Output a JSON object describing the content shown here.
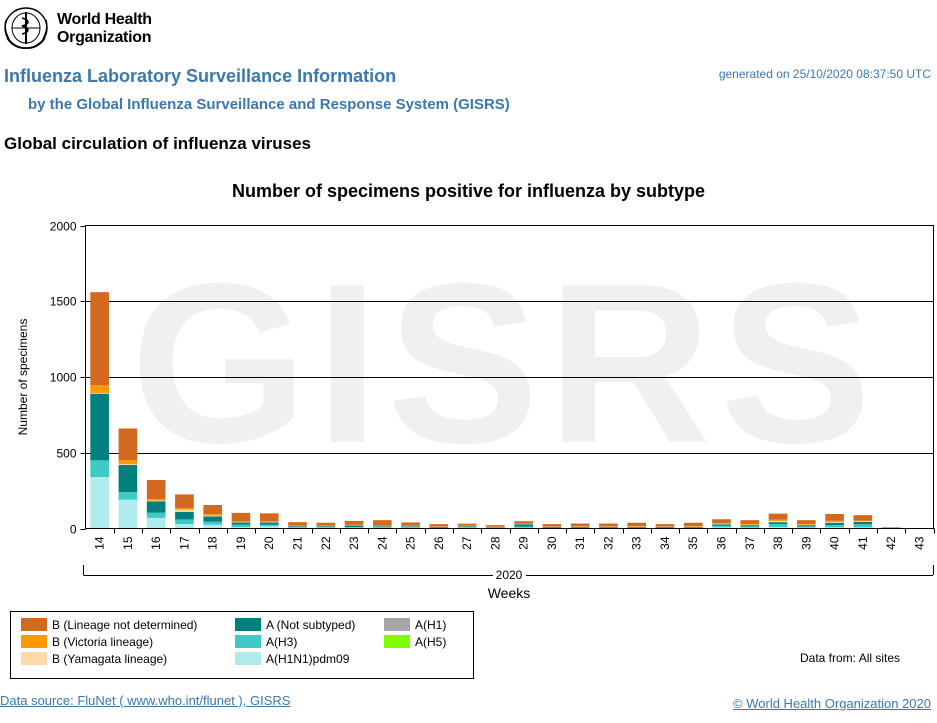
{
  "header": {
    "org_name_line1": "World Health",
    "org_name_line2": "Organization",
    "title": "Influenza Laboratory Surveillance Information",
    "subtitle": "by the Global Influenza Surveillance and Response System (GISRS)",
    "generated": "generated on 25/10/2020 08:37:50 UTC",
    "section_title": "Global circulation of influenza viruses"
  },
  "watermark": "GISRS",
  "chart_data": {
    "type": "bar",
    "stacked": true,
    "title": "Number of specimens positive for influenza by subtype",
    "ylabel": "Number of specimens",
    "xlabel": "Weeks",
    "year_label": "2020",
    "ylim": [
      0,
      2000
    ],
    "yticks": [
      0,
      500,
      1000,
      1500,
      2000
    ],
    "grid": true,
    "categories": [
      "14",
      "15",
      "16",
      "17",
      "18",
      "19",
      "20",
      "21",
      "22",
      "23",
      "24",
      "25",
      "26",
      "27",
      "28",
      "29",
      "30",
      "31",
      "32",
      "33",
      "34",
      "35",
      "36",
      "37",
      "38",
      "39",
      "40",
      "41",
      "42",
      "43"
    ],
    "series": [
      {
        "name": "A(H1N1)pdm09",
        "color": "#b0ebeb",
        "values": [
          340,
          190,
          70,
          30,
          25,
          10,
          15,
          5,
          5,
          5,
          5,
          5,
          3,
          5,
          3,
          5,
          3,
          3,
          3,
          3,
          3,
          3,
          8,
          6,
          10,
          6,
          8,
          8,
          0,
          0
        ]
      },
      {
        "name": "A(H3)",
        "color": "#3dc9c4",
        "values": [
          110,
          50,
          35,
          30,
          20,
          15,
          10,
          5,
          5,
          5,
          5,
          5,
          3,
          5,
          3,
          8,
          3,
          3,
          3,
          3,
          3,
          3,
          10,
          8,
          20,
          8,
          15,
          20,
          2,
          0
        ]
      },
      {
        "name": "A(Not subtyped)",
        "color": "#007f7f",
        "values": [
          440,
          180,
          75,
          50,
          35,
          15,
          15,
          5,
          5,
          10,
          5,
          5,
          5,
          5,
          3,
          15,
          5,
          5,
          5,
          5,
          5,
          5,
          10,
          8,
          12,
          8,
          15,
          15,
          3,
          1
        ]
      },
      {
        "name": "A(H1)",
        "color": "#a6a6a6",
        "values": [
          0,
          0,
          0,
          0,
          0,
          0,
          0,
          0,
          0,
          0,
          0,
          0,
          0,
          0,
          0,
          0,
          0,
          0,
          0,
          0,
          0,
          0,
          0,
          0,
          0,
          0,
          0,
          0,
          0,
          0
        ]
      },
      {
        "name": "A(H5)",
        "color": "#7fff00",
        "values": [
          0,
          0,
          0,
          0,
          0,
          0,
          0,
          0,
          0,
          0,
          0,
          0,
          0,
          0,
          0,
          0,
          0,
          0,
          0,
          0,
          0,
          0,
          0,
          0,
          0,
          0,
          0,
          0,
          0,
          0
        ]
      },
      {
        "name": "B (Yamagata lineage)",
        "color": "#fdd9a9",
        "values": [
          5,
          5,
          5,
          15,
          5,
          3,
          3,
          2,
          2,
          2,
          2,
          2,
          1,
          2,
          1,
          2,
          1,
          1,
          1,
          2,
          1,
          2,
          3,
          3,
          8,
          3,
          5,
          5,
          0,
          0
        ]
      },
      {
        "name": "B (Victoria lineage)",
        "color": "#ff9900",
        "values": [
          50,
          25,
          10,
          10,
          10,
          5,
          5,
          3,
          3,
          3,
          3,
          3,
          2,
          3,
          2,
          3,
          2,
          3,
          3,
          3,
          2,
          3,
          5,
          5,
          8,
          5,
          8,
          5,
          0,
          0
        ]
      },
      {
        "name": "B (Lineage not determined)",
        "color": "#d2691e",
        "values": [
          615,
          210,
          125,
          90,
          60,
          55,
          52,
          22,
          18,
          25,
          35,
          20,
          15,
          12,
          10,
          15,
          15,
          18,
          18,
          22,
          15,
          22,
          25,
          25,
          40,
          25,
          45,
          35,
          3,
          2
        ]
      }
    ],
    "legend_layout": [
      [
        "B (Lineage not determined)",
        "A (Not subtyped)",
        "A(H1)"
      ],
      [
        "B (Victoria lineage)",
        "A(H3)",
        "A(H5)"
      ],
      [
        "B (Yamagata lineage)",
        "A(H1N1)pdm09"
      ]
    ],
    "legend_placement": "bottom-left"
  },
  "legend_labels": {
    "b_lineage_nd": "B (Lineage not determined)",
    "a_not_subtyped": "A (Not subtyped)",
    "a_h1": "A(H1)",
    "b_victoria": "B (Victoria lineage)",
    "a_h3": "A(H3)",
    "a_h5": "A(H5)",
    "b_yamagata": "B (Yamagata lineage)",
    "a_h1n1": "A(H1N1)pdm09"
  },
  "legend_colors": {
    "b_lineage_nd": "#d2691e",
    "a_not_subtyped": "#007f7f",
    "a_h1": "#a6a6a6",
    "b_victoria": "#ff9900",
    "a_h3": "#3dc9c4",
    "a_h5": "#7fff00",
    "b_yamagata": "#fdd9a9",
    "a_h1n1": "#b0ebeb"
  },
  "footer": {
    "data_from": "Data from: All sites",
    "data_source": "Data source: FluNet ( www.who.int/flunet ), GISRS",
    "copyright": "© World Health Organization 2020"
  }
}
